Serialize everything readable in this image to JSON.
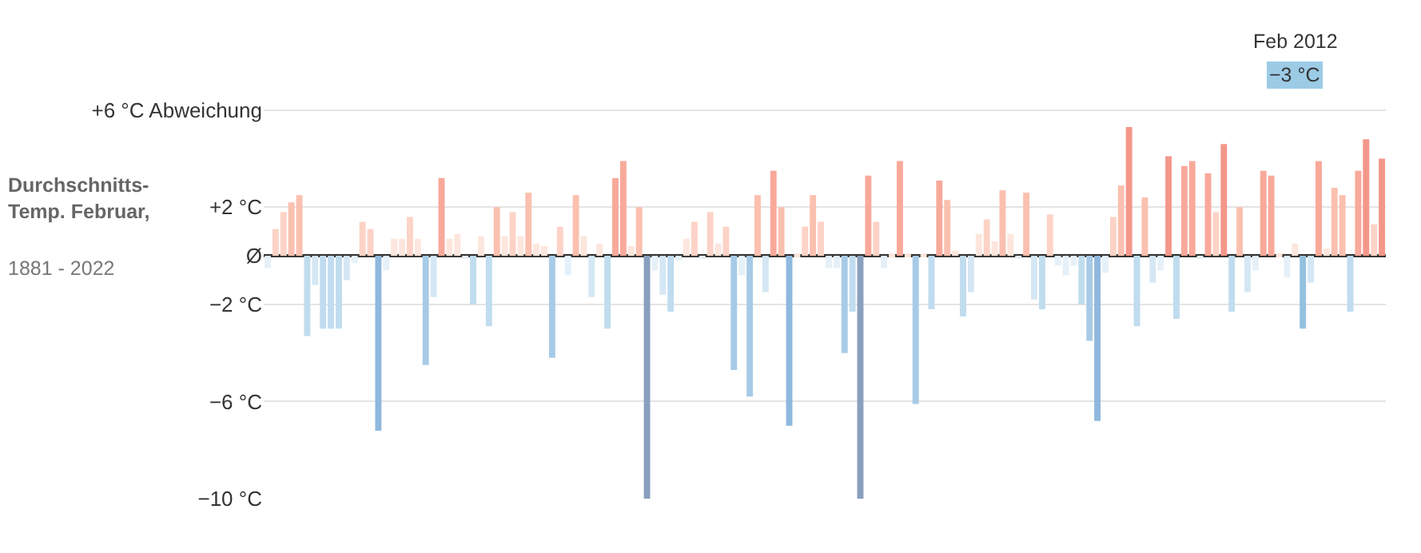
{
  "chart_data": {
    "type": "bar",
    "title": "Durchschnitts-\nTemp. Februar,",
    "subtitle": "1881 - 2022",
    "categories": [
      null,
      null,
      null,
      null,
      null,
      null,
      null,
      null,
      null,
      null,
      null,
      null,
      null,
      null,
      null,
      null,
      null,
      null,
      null,
      null,
      null,
      null,
      null,
      null,
      null,
      null,
      null,
      null,
      null,
      null,
      null,
      null,
      null,
      null,
      null,
      null,
      null,
      null,
      null,
      null,
      null,
      null,
      null,
      null,
      null,
      null,
      null,
      null,
      null,
      null,
      null,
      null,
      null,
      null,
      null,
      null,
      null,
      null,
      null,
      null,
      null,
      null,
      null,
      null,
      null,
      null,
      null,
      null,
      null,
      null,
      null,
      null,
      null,
      null,
      null,
      null,
      null,
      null,
      null,
      null,
      null,
      null,
      null,
      null,
      null,
      null,
      null,
      null,
      null,
      null,
      null,
      null,
      null,
      null,
      null,
      null,
      null,
      null,
      null,
      null,
      null,
      null,
      null,
      null,
      null,
      null,
      null,
      null,
      null,
      null,
      null,
      null,
      null,
      null,
      null,
      null,
      null,
      null,
      null,
      null,
      null,
      null,
      null,
      null,
      null,
      null,
      null,
      null,
      null,
      null,
      null,
      null,
      null,
      null,
      null,
      null,
      null,
      null,
      null,
      null,
      null,
      null
    ],
    "values": [
      -0.5,
      1.1,
      1.8,
      2.2,
      2.5,
      -3.3,
      -1.2,
      -3.0,
      -3.0,
      -3.0,
      -1.0,
      -0.3,
      1.4,
      1.1,
      -7.2,
      -0.6,
      0.7,
      0.7,
      1.6,
      0.7,
      -4.5,
      -1.7,
      3.2,
      0.7,
      0.9,
      -0.1,
      -2.0,
      0.8,
      -2.9,
      2.0,
      0.8,
      1.8,
      0.8,
      2.6,
      0.5,
      0.4,
      -4.2,
      1.2,
      -0.8,
      2.5,
      0.8,
      -1.7,
      0.5,
      -3.0,
      3.2,
      3.9,
      0.4,
      2.0,
      -10.0,
      -0.6,
      -1.6,
      -2.3,
      -0.2,
      0.7,
      1.4,
      -0.1,
      1.8,
      0.5,
      1.2,
      -4.7,
      -0.8,
      -5.8,
      2.5,
      -1.5,
      3.5,
      2.0,
      -7.0,
      0.1,
      1.2,
      2.5,
      1.4,
      -0.5,
      -0.5,
      -4.0,
      -2.3,
      -10.0,
      3.3,
      1.4,
      -0.5,
      0.1,
      3.9,
      0.1,
      -6.1,
      0.1,
      -2.2,
      3.1,
      2.3,
      0.2,
      -2.5,
      -1.5,
      0.9,
      1.5,
      0.6,
      2.7,
      0.9,
      -0.1,
      2.6,
      -1.8,
      -2.2,
      1.7,
      -0.4,
      -0.8,
      -0.4,
      -2.0,
      -3.5,
      -6.8,
      -0.7,
      1.6,
      2.9,
      5.3,
      -2.9,
      2.4,
      -1.1,
      -0.6,
      4.1,
      -2.6,
      3.7,
      3.9,
      -0.1,
      3.4,
      1.8,
      4.6,
      -2.3,
      2.0,
      -1.5,
      -0.6,
      3.5,
      3.3,
      0.1,
      -0.9,
      0.5,
      -3.0,
      -1.1,
      3.9,
      0.3,
      2.8,
      2.5,
      -2.3,
      3.5,
      4.8,
      1.3,
      4.0
    ],
    "colors": [
      "#e6f0f8",
      "#fcd3c6",
      "#fcd3c6",
      "#fbc0af",
      "#fbc0af",
      "#c0dcef",
      "#d5e7f4",
      "#c0dcef",
      "#c0dcef",
      "#c0dcef",
      "#d5e7f4",
      "#e6f0f8",
      "#fcd3c6",
      "#fcd3c6",
      "#8fb8dd",
      "#e6f0f8",
      "#fde6dd",
      "#fde6dd",
      "#fcd3c6",
      "#fde6dd",
      "#a7cbe7",
      "#d5e7f4",
      "#f8a99a",
      "#fde6dd",
      "#fde6dd",
      "#e6f0f8",
      "#c0dcef",
      "#fde6dd",
      "#c0dcef",
      "#fbc0af",
      "#fde6dd",
      "#fcd3c6",
      "#fde6dd",
      "#fbc0af",
      "#fde6dd",
      "#fde6dd",
      "#a7cbe7",
      "#fcd3c6",
      "#e6f0f8",
      "#fbc0af",
      "#fde6dd",
      "#d5e7f4",
      "#fde6dd",
      "#c0dcef",
      "#f8a99a",
      "#f8a99a",
      "#fde6dd",
      "#fbc0af",
      "#8a9fbf",
      "#e6f0f8",
      "#d5e7f4",
      "#c0dcef",
      "#e6f0f8",
      "#fde6dd",
      "#fcd3c6",
      "#e6f0f8",
      "#fcd3c6",
      "#fde6dd",
      "#fcd3c6",
      "#a7cbe7",
      "#e6f0f8",
      "#a7cbe7",
      "#fbc0af",
      "#d5e7f4",
      "#f8a99a",
      "#fbc0af",
      "#8fb8dd",
      "#fde6dd",
      "#fcd3c6",
      "#fbc0af",
      "#fcd3c6",
      "#e6f0f8",
      "#e6f0f8",
      "#a7cbe7",
      "#c0dcef",
      "#8a9fbf",
      "#f8a99a",
      "#fcd3c6",
      "#e6f0f8",
      "#fde6dd",
      "#f8a99a",
      "#fde6dd",
      "#a7cbe7",
      "#fde6dd",
      "#c0dcef",
      "#f8a99a",
      "#fbc0af",
      "#fde6dd",
      "#c0dcef",
      "#d5e7f4",
      "#fde6dd",
      "#fcd3c6",
      "#fde6dd",
      "#fbc0af",
      "#fde6dd",
      "#e6f0f8",
      "#fbc0af",
      "#d5e7f4",
      "#c0dcef",
      "#fcd3c6",
      "#e6f0f8",
      "#e6f0f8",
      "#e6f0f8",
      "#c0dcef",
      "#a7cbe7",
      "#8fb8dd",
      "#e6f0f8",
      "#fcd3c6",
      "#fbc0af",
      "#f4968a",
      "#c0dcef",
      "#fbc0af",
      "#d5e7f4",
      "#e6f0f8",
      "#f4968a",
      "#c0dcef",
      "#f8a99a",
      "#f8a99a",
      "#e6f0f8",
      "#f8a99a",
      "#fcd3c6",
      "#f4968a",
      "#c0dcef",
      "#fbc0af",
      "#d5e7f4",
      "#e6f0f8",
      "#f8a99a",
      "#f8a99a",
      "#fde6dd",
      "#e6f0f8",
      "#fde6dd",
      "#94c1e0",
      "#d5e7f4",
      "#f8a99a",
      "#fde6dd",
      "#fbc0af",
      "#fbc0af",
      "#c0dcef",
      "#f8a99a",
      "#f4968a",
      "#fcd3c6",
      "#f4968a"
    ],
    "ylim": [
      -10,
      7.9
    ],
    "yticks": [
      {
        "value": 6,
        "label": "+6 °C Abweichung"
      },
      {
        "value": 2,
        "label": "+2 °C"
      },
      {
        "value": 0,
        "label": "Ø"
      },
      {
        "value": -2,
        "label": "−2 °C"
      },
      {
        "value": -6,
        "label": "−6 °C"
      },
      {
        "value": -10,
        "label": "−10 °C"
      }
    ],
    "tick_labels": "y",
    "grid": "y",
    "annotations": [
      "Feb 2012",
      "−3 °C"
    ]
  }
}
